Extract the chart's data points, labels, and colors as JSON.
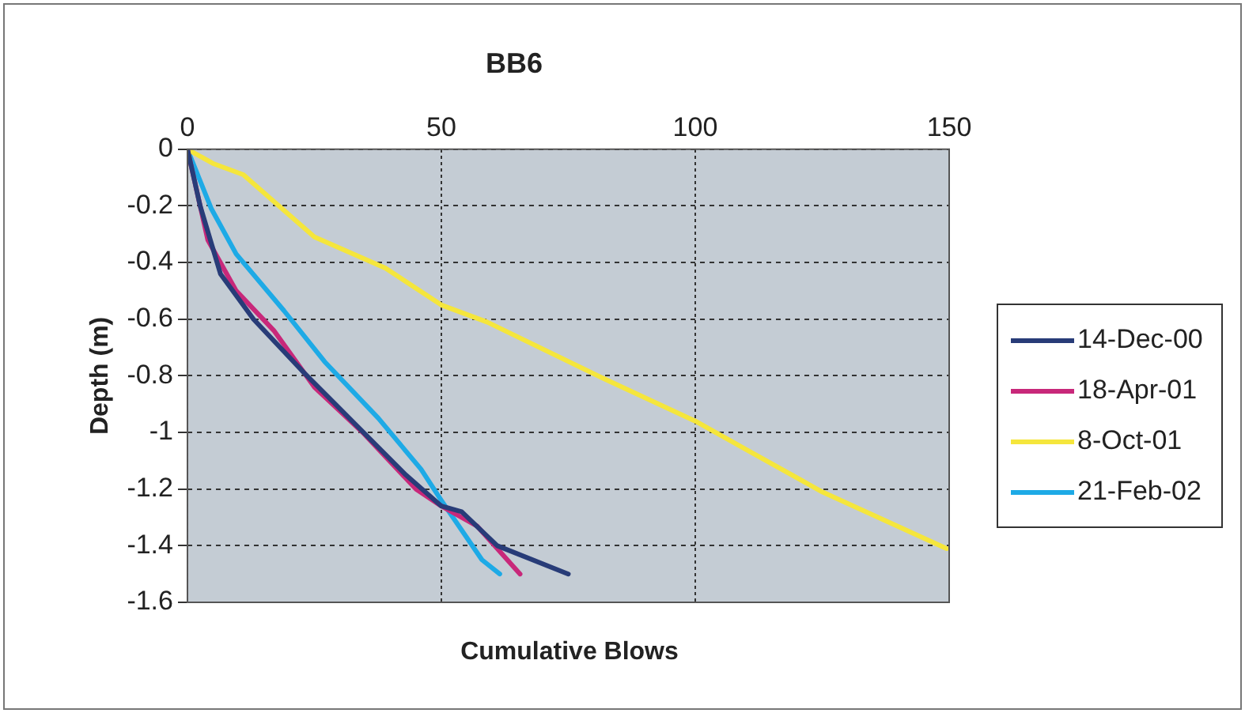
{
  "chart_data": {
    "type": "line",
    "title": "BB6",
    "xlabel": "Cumulative Blows",
    "ylabel": "Depth (m)",
    "xlim": [
      0,
      150
    ],
    "xticks": [
      0,
      50,
      100,
      150
    ],
    "ylim": [
      -1.6,
      0
    ],
    "yticks": [
      0,
      -0.2,
      -0.4,
      -0.6,
      -0.8,
      -1,
      -1.2,
      -1.4,
      -1.6
    ],
    "grid": true,
    "legend": "right",
    "marker": "none",
    "line_style": "solid",
    "series": [
      {
        "name": "14-Dec-00",
        "color": "#283c78",
        "x": [
          0,
          2.5,
          6.5,
          13,
          23,
          33,
          43,
          50,
          54,
          61,
          75
        ],
        "values": [
          0,
          -0.2,
          -0.44,
          -0.6,
          -0.79,
          -0.97,
          -1.15,
          -1.26,
          -1.28,
          -1.4,
          -1.5
        ]
      },
      {
        "name": "18-Apr-01",
        "color": "#c8287a",
        "x": [
          0,
          4,
          9.6,
          17,
          25,
          34.5,
          45,
          50,
          57,
          65.5
        ],
        "values": [
          0,
          -0.32,
          -0.5,
          -0.64,
          -0.84,
          -1,
          -1.2,
          -1.26,
          -1.33,
          -1.5
        ]
      },
      {
        "name": "8-Oct-01",
        "color": "#f5e63c",
        "x": [
          0,
          5,
          11,
          25,
          39,
          50,
          59,
          82,
          100,
          110,
          125,
          149.5
        ],
        "values": [
          0,
          -0.05,
          -0.09,
          -0.31,
          -0.42,
          -0.55,
          -0.61,
          -0.81,
          -0.96,
          -1.06,
          -1.21,
          -1.41
        ]
      },
      {
        "name": "21-Feb-02",
        "color": "#1eaae6",
        "x": [
          0,
          4.7,
          9.6,
          19,
          27,
          37.6,
          46,
          50,
          58,
          61.5
        ],
        "values": [
          0,
          -0.21,
          -0.37,
          -0.57,
          -0.75,
          -0.95,
          -1.13,
          -1.24,
          -1.45,
          -1.5
        ]
      }
    ]
  }
}
